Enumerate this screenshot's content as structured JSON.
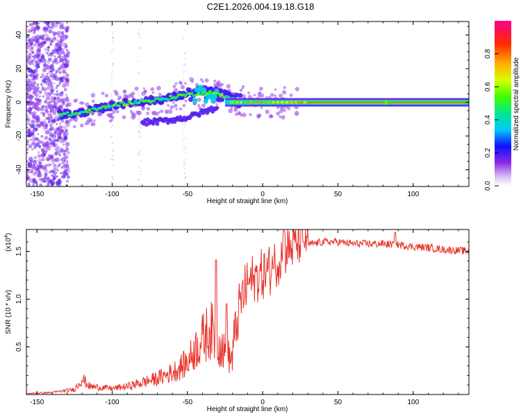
{
  "chart_data": [
    {
      "type": "heatmap",
      "title": "C2E1.2026.004.19.18.G18",
      "xlabel": "Height of straight line (km)",
      "ylabel": "Frequency (Hz)",
      "xlim": [
        -157,
        137
      ],
      "ylim": [
        -50,
        48
      ],
      "xticks": [
        -150,
        -100,
        -50,
        0,
        50,
        100
      ],
      "yticks": [
        -40,
        -20,
        0,
        20,
        40
      ],
      "colorbar": {
        "label": "Normalized spectral amplitude",
        "range": [
          0.0,
          1.0
        ],
        "ticks": [
          "0.0",
          "0.2",
          "0.4",
          "0.6",
          "0.8"
        ],
        "tick_values": [
          0.0,
          0.2,
          0.4,
          0.6,
          0.8
        ]
      },
      "ridge": [
        [
          -135,
          -7
        ],
        [
          -125,
          -7
        ],
        [
          -115,
          -5
        ],
        [
          -105,
          -3
        ],
        [
          -95,
          -1
        ],
        [
          -85,
          0
        ],
        [
          -75,
          1
        ],
        [
          -65,
          2
        ],
        [
          -55,
          4
        ],
        [
          -45,
          5
        ],
        [
          -35,
          6
        ],
        [
          -28,
          4
        ],
        [
          -20,
          2
        ],
        [
          -10,
          0
        ],
        [
          0,
          0
        ],
        [
          20,
          0
        ],
        [
          60,
          0
        ],
        [
          100,
          0
        ],
        [
          137,
          0
        ]
      ],
      "lower_branch": [
        [
          -80,
          -12
        ],
        [
          -65,
          -11
        ],
        [
          -50,
          -9
        ],
        [
          -40,
          -6
        ],
        [
          -30,
          -3
        ]
      ]
    },
    {
      "type": "line",
      "xlabel": "Height of straight line (km)",
      "ylabel": "SNR (10 * v/v)",
      "scale_label": "(x10",
      "scale_exponent": "4",
      "scale_suffix": ")",
      "xlim": [
        -157,
        137
      ],
      "ylim": [
        0.0,
        1.73
      ],
      "xticks": [
        -150,
        -100,
        -50,
        0,
        50,
        100
      ],
      "yticks": [
        0.5,
        1.0,
        1.5
      ],
      "color": "#e8322a",
      "envelope": [
        [
          -157,
          0.01
        ],
        [
          -140,
          0.02
        ],
        [
          -125,
          0.05
        ],
        [
          -120,
          0.16
        ],
        [
          -115,
          0.08
        ],
        [
          -100,
          0.06
        ],
        [
          -90,
          0.08
        ],
        [
          -80,
          0.12
        ],
        [
          -70,
          0.16
        ],
        [
          -60,
          0.22
        ],
        [
          -50,
          0.32
        ],
        [
          -45,
          0.45
        ],
        [
          -40,
          0.55
        ],
        [
          -35,
          0.65
        ],
        [
          -30,
          0.55
        ],
        [
          -25,
          0.4
        ],
        [
          -20,
          0.35
        ],
        [
          -15,
          0.85
        ],
        [
          -10,
          1.05
        ],
        [
          -5,
          1.12
        ],
        [
          0,
          1.15
        ],
        [
          5,
          1.2
        ],
        [
          10,
          1.3
        ],
        [
          15,
          1.4
        ],
        [
          20,
          1.45
        ],
        [
          25,
          1.52
        ],
        [
          30,
          1.57
        ],
        [
          40,
          1.6
        ],
        [
          50,
          1.6
        ],
        [
          60,
          1.58
        ],
        [
          80,
          1.58
        ],
        [
          90,
          1.57
        ],
        [
          100,
          1.55
        ],
        [
          110,
          1.54
        ],
        [
          120,
          1.52
        ],
        [
          130,
          1.51
        ],
        [
          137,
          1.5
        ]
      ],
      "peaks": [
        [
          -31,
          1.41
        ],
        [
          -24,
          0.95
        ],
        [
          -6,
          1.25
        ],
        [
          7,
          1.32
        ],
        [
          14,
          1.72
        ],
        [
          27,
          1.6
        ],
        [
          88,
          1.7
        ]
      ]
    }
  ]
}
